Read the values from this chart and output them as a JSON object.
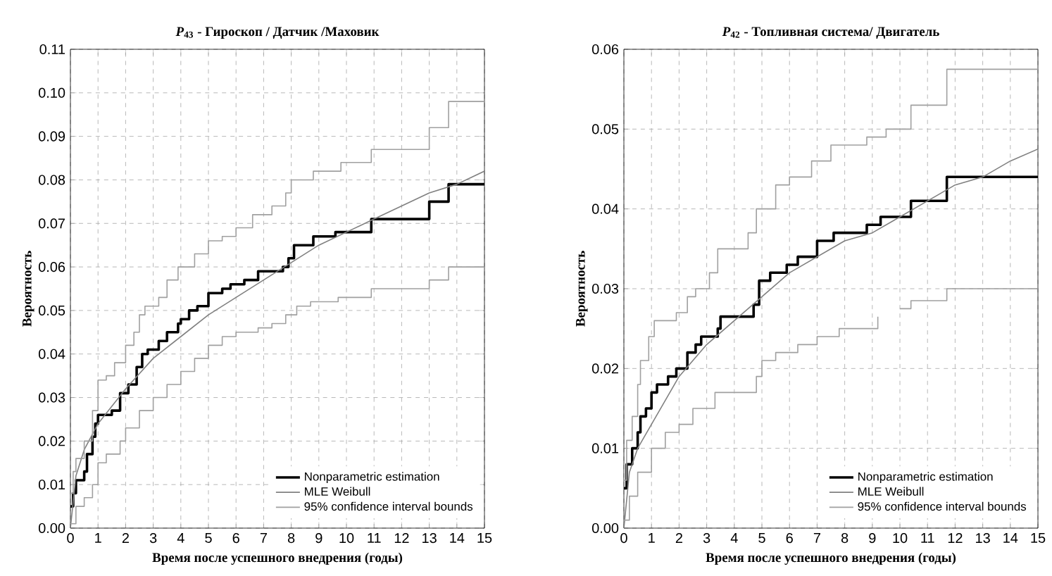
{
  "chart_data": [
    {
      "type": "line",
      "title": "*P*$_{43}$ - Гироскоп / Датчик /Маховик",
      "xlabel": "Время после успешного внедрения (годы)",
      "ylabel": "Вероятность",
      "xlim": [
        0,
        15
      ],
      "ylim": [
        0,
        0.11
      ],
      "xticks": [
        0,
        1,
        2,
        3,
        4,
        5,
        6,
        7,
        8,
        9,
        10,
        11,
        12,
        13,
        14,
        15
      ],
      "yticks": [
        {
          "value": 0,
          "label": "0.00"
        },
        {
          "value": 0.01,
          "label": "0.01"
        },
        {
          "value": 0.02,
          "label": "0.02"
        },
        {
          "value": 0.03,
          "label": "0.03"
        },
        {
          "value": 0.04,
          "label": "0.04"
        },
        {
          "value": 0.05,
          "label": "0.05"
        },
        {
          "value": 0.06,
          "label": "0.06"
        },
        {
          "value": 0.07,
          "label": "0.07"
        },
        {
          "value": 0.08,
          "label": "0.08"
        },
        {
          "value": 0.09,
          "label": "0.09"
        },
        {
          "value": 0.1,
          "label": "0.10"
        },
        {
          "value": 0.11,
          "label": "0.11"
        }
      ],
      "grid": true,
      "legend": "bottom right",
      "series": [
        {
          "name": "Nonparametric estimation",
          "type": "step",
          "color": "#000000",
          "x": [
            0,
            0.1,
            0.2,
            0.5,
            0.6,
            0.8,
            0.9,
            1.0,
            1.5,
            1.8,
            2.1,
            2.4,
            2.6,
            2.8,
            3.2,
            3.5,
            3.9,
            4.0,
            4.3,
            4.6,
            5.0,
            5.5,
            5.8,
            6.3,
            6.8,
            7.7,
            7.9,
            8.1,
            8.8,
            9.6,
            10.9,
            13.0,
            13.7,
            15
          ],
          "values": [
            0.005,
            0.008,
            0.011,
            0.013,
            0.017,
            0.021,
            0.024,
            0.026,
            0.027,
            0.031,
            0.033,
            0.037,
            0.04,
            0.041,
            0.043,
            0.045,
            0.047,
            0.048,
            0.05,
            0.051,
            0.054,
            0.055,
            0.056,
            0.057,
            0.059,
            0.06,
            0.062,
            0.065,
            0.067,
            0.068,
            0.071,
            0.075,
            0.079,
            0.079
          ]
        },
        {
          "name": "MLE Weibull",
          "type": "line",
          "color": "#808080",
          "x": [
            0,
            0.2,
            0.5,
            1,
            1.5,
            2,
            3,
            4,
            5,
            6,
            7,
            8,
            9,
            10,
            11,
            12,
            13,
            14,
            15
          ],
          "values": [
            0,
            0.012,
            0.018,
            0.024,
            0.028,
            0.032,
            0.039,
            0.044,
            0.049,
            0.053,
            0.057,
            0.061,
            0.065,
            0.068,
            0.071,
            0.074,
            0.077,
            0.079,
            0.082
          ]
        },
        {
          "name": "95% confidence interval bounds",
          "type": "step",
          "color": "#a0a0a0",
          "x": [
            0,
            0.1,
            0.2,
            0.5,
            0.8,
            1.0,
            1.3,
            1.6,
            2.0,
            2.3,
            2.5,
            2.7,
            3.2,
            3.5,
            3.9,
            4.5,
            5.0,
            5.5,
            6.0,
            6.6,
            7.3,
            7.8,
            8.0,
            8.8,
            9.8,
            10.9,
            13.0,
            13.7,
            15
          ],
          "values": [
            0.008,
            0.013,
            0.016,
            0.02,
            0.027,
            0.034,
            0.035,
            0.038,
            0.042,
            0.045,
            0.049,
            0.051,
            0.053,
            0.057,
            0.06,
            0.063,
            0.066,
            0.067,
            0.069,
            0.072,
            0.074,
            0.077,
            0.08,
            0.082,
            0.084,
            0.087,
            0.092,
            0.098,
            0.098
          ]
        },
        {
          "type": "step",
          "color": "#a0a0a0",
          "x": [
            0,
            0.2,
            0.5,
            0.8,
            1.0,
            1.3,
            1.8,
            2.0,
            2.5,
            3.0,
            3.5,
            4.0,
            4.5,
            5.0,
            5.5,
            6.0,
            6.8,
            7.3,
            7.8,
            8.2,
            8.7,
            9.7,
            10.9,
            13.0,
            13.7,
            15
          ],
          "values": [
            0.001,
            0.005,
            0.007,
            0.01,
            0.015,
            0.017,
            0.02,
            0.023,
            0.027,
            0.03,
            0.033,
            0.036,
            0.039,
            0.042,
            0.044,
            0.045,
            0.046,
            0.047,
            0.049,
            0.051,
            0.052,
            0.053,
            0.055,
            0.057,
            0.06,
            0.06
          ]
        }
      ]
    },
    {
      "type": "line",
      "title": "*P*$_{42}$ - Топливная система/ Двигатель",
      "xlabel": "Время после успешного внедрения (годы)",
      "ylabel": "Вероятность",
      "xlim": [
        0,
        15
      ],
      "ylim": [
        0,
        0.06
      ],
      "xticks": [
        0,
        1,
        2,
        3,
        4,
        5,
        6,
        7,
        8,
        9,
        10,
        11,
        12,
        13,
        14,
        15
      ],
      "yticks": [
        {
          "value": 0,
          "label": "0.00"
        },
        {
          "value": 0.01,
          "label": "0.01"
        },
        {
          "value": 0.02,
          "label": "0.02"
        },
        {
          "value": 0.03,
          "label": "0.03"
        },
        {
          "value": 0.04,
          "label": "0.04"
        },
        {
          "value": 0.05,
          "label": "0.05"
        },
        {
          "value": 0.06,
          "label": "0.06"
        }
      ],
      "grid": true,
      "legend": "bottom right",
      "series": [
        {
          "name": "Nonparametric estimation",
          "type": "step",
          "color": "#000000",
          "x": [
            0,
            0.1,
            0.3,
            0.5,
            0.6,
            0.8,
            1.0,
            1.2,
            1.6,
            1.9,
            2.3,
            2.6,
            2.8,
            3.4,
            3.5,
            4.7,
            4.9,
            5.3,
            5.9,
            6.3,
            7.0,
            7.6,
            8.8,
            9.3,
            10.4,
            11.7,
            15
          ],
          "values": [
            0.005,
            0.008,
            0.01,
            0.012,
            0.014,
            0.015,
            0.017,
            0.018,
            0.019,
            0.02,
            0.022,
            0.023,
            0.024,
            0.025,
            0.0265,
            0.028,
            0.031,
            0.032,
            0.033,
            0.034,
            0.036,
            0.037,
            0.038,
            0.039,
            0.041,
            0.044,
            0.044
          ]
        },
        {
          "name": "MLE Weibull",
          "type": "line",
          "color": "#808080",
          "x": [
            0,
            0.2,
            0.5,
            1,
            1.5,
            2,
            3,
            4,
            5,
            6,
            7,
            8,
            9,
            10,
            11,
            12,
            13,
            14,
            15
          ],
          "values": [
            0,
            0.007,
            0.01,
            0.013,
            0.016,
            0.019,
            0.023,
            0.026,
            0.029,
            0.032,
            0.034,
            0.036,
            0.037,
            0.039,
            0.041,
            0.043,
            0.044,
            0.046,
            0.0475
          ]
        },
        {
          "name": "95% confidence interval bounds",
          "type": "step",
          "color": "#a0a0a0",
          "x": [
            0,
            0.1,
            0.3,
            0.5,
            0.6,
            0.9,
            1.1,
            1.9,
            2.3,
            2.6,
            3.1,
            3.4,
            4.5,
            4.8,
            5.5,
            6.0,
            6.8,
            7.5,
            8.8,
            9.5,
            10.4,
            11.7,
            15
          ],
          "values": [
            0.006,
            0.011,
            0.014,
            0.018,
            0.021,
            0.024,
            0.026,
            0.027,
            0.029,
            0.03,
            0.032,
            0.035,
            0.037,
            0.04,
            0.043,
            0.044,
            0.046,
            0.048,
            0.049,
            0.05,
            0.053,
            0.0575,
            0.0575
          ]
        },
        {
          "type": "step",
          "color": "#a0a0a0",
          "x": [
            0,
            0.2,
            0.5,
            1,
            1.5,
            2,
            2.5,
            3.3,
            4.8,
            5.0,
            5.5,
            6.3,
            7.0,
            7.8,
            9.2,
            9.3,
            10.0,
            10.4,
            11.7,
            15
          ],
          "values": [
            0.001,
            0.004,
            0.007,
            0.01,
            0.012,
            0.013,
            0.015,
            0.017,
            0.019,
            0.021,
            0.022,
            0.023,
            0.024,
            0.025,
            0.0265,
            null,
            0.0275,
            0.0285,
            0.03,
            0.03
          ]
        }
      ]
    }
  ]
}
